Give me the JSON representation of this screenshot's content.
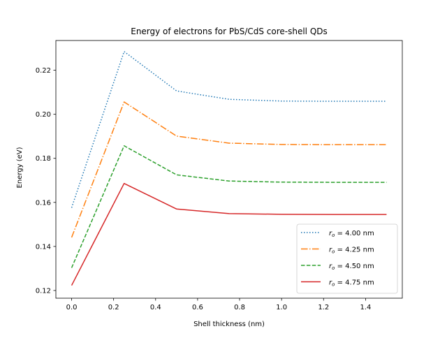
{
  "chart_data": {
    "type": "line",
    "title": "Energy of electrons for PbS/CdS core-shell QDs",
    "xlabel": "Shell thickness (nm)",
    "ylabel": "Energy (eV)",
    "xlim": [
      -0.075,
      1.575
    ],
    "ylim": [
      0.1165,
      0.2335
    ],
    "x_ticks": [
      0.0,
      0.2,
      0.4,
      0.6,
      0.8,
      1.0,
      1.2,
      1.4
    ],
    "x_tick_labels": [
      "0.0",
      "0.2",
      "0.4",
      "0.6",
      "0.8",
      "1.0",
      "1.2",
      "1.4"
    ],
    "y_ticks": [
      0.12,
      0.14,
      0.16,
      0.18,
      0.2,
      0.22
    ],
    "y_tick_labels": [
      "0.12",
      "0.14",
      "0.16",
      "0.18",
      "0.20",
      "0.22"
    ],
    "legend_position": "lower-right",
    "x": [
      0.0,
      0.25,
      0.5,
      0.75,
      1.0,
      1.25,
      1.5
    ],
    "series": [
      {
        "name": "r_o = 4.00 nm",
        "label_symbol": "r",
        "label_sub": "o",
        "label_rest": " = 4.00 nm",
        "color": "#1f77b4",
        "linestyle": "dotted",
        "values": [
          0.1576,
          0.2285,
          0.2106,
          0.2068,
          0.206,
          0.2059,
          0.2059
        ]
      },
      {
        "name": "r_o = 4.25 nm",
        "label_symbol": "r",
        "label_sub": "o",
        "label_rest": " = 4.25 nm",
        "color": "#ff7f0e",
        "linestyle": "dashdot",
        "values": [
          0.1441,
          0.2056,
          0.1901,
          0.1869,
          0.1863,
          0.1862,
          0.1862
        ]
      },
      {
        "name": "r_o = 4.50 nm",
        "label_symbol": "r",
        "label_sub": "o",
        "label_rest": " = 4.50 nm",
        "color": "#2ca02c",
        "linestyle": "dashed",
        "values": [
          0.1303,
          0.1857,
          0.1725,
          0.1697,
          0.1692,
          0.1691,
          0.1691
        ]
      },
      {
        "name": "r_o = 4.75 nm",
        "label_symbol": "r",
        "label_sub": "o",
        "label_rest": " = 4.75 nm",
        "color": "#d62728",
        "linestyle": "solid",
        "values": [
          0.1223,
          0.1686,
          0.157,
          0.1549,
          0.1546,
          0.1545,
          0.1545
        ]
      }
    ]
  }
}
